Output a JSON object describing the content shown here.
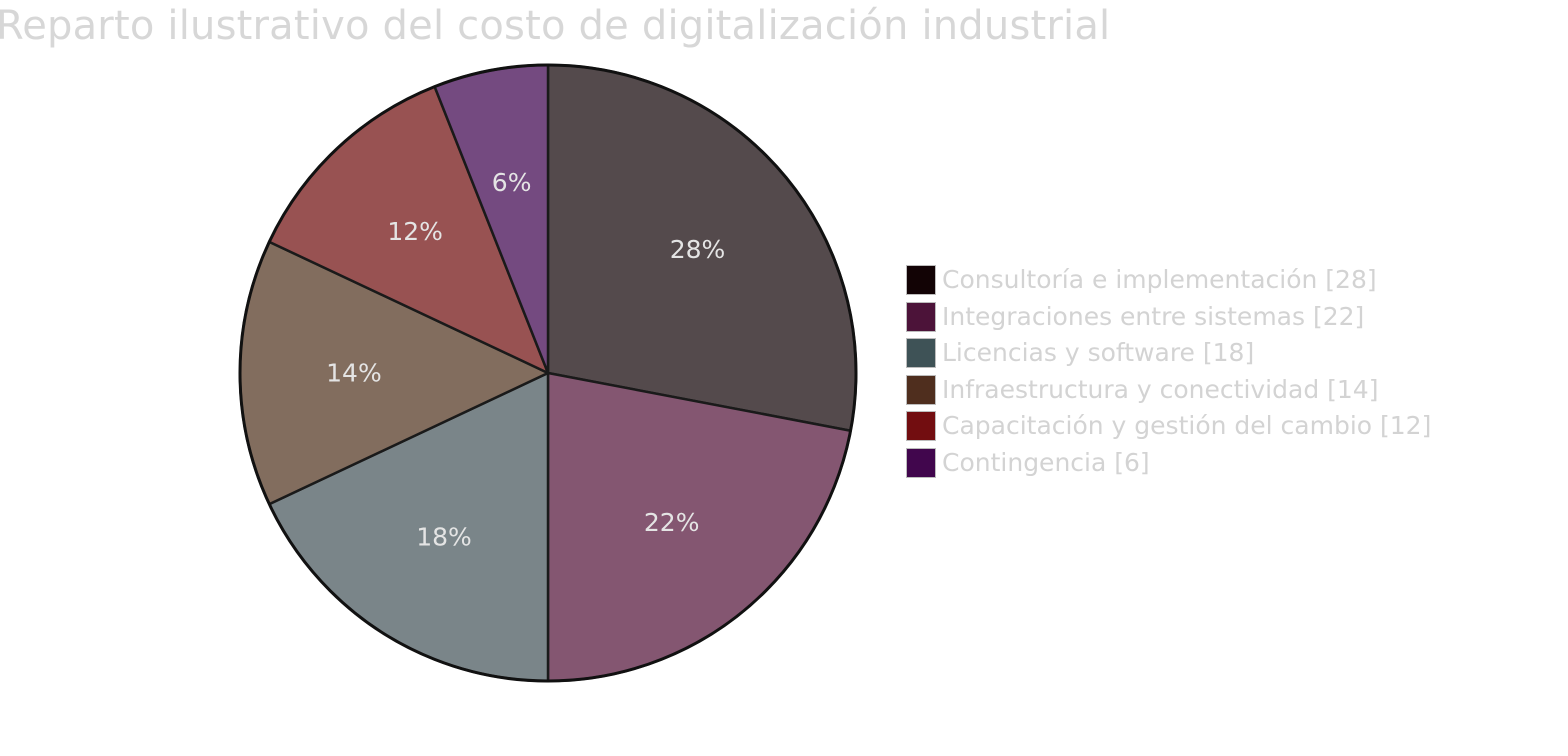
{
  "chart_data": {
    "type": "pie",
    "title": "Reparto ilustrativo del costo de digitalización industrial",
    "categories": [
      "Consultoría e implementación",
      "Integraciones entre sistemas",
      "Licencias y software",
      "Infraestructura y conectividad",
      "Capacitación y gestión del cambio",
      "Contingencia"
    ],
    "values": [
      28,
      22,
      18,
      14,
      12,
      6
    ],
    "slice_labels": [
      "28%",
      "22%",
      "18%",
      "14%",
      "12%",
      "6%"
    ],
    "legend_labels": [
      "Consultoría e implementación [28]",
      "Integraciones entre sistemas [22]",
      "Licencias y software [18]",
      "Infraestructura y conectividad [14]",
      "Capacitación y gestión del cambio [12]",
      "Contingencia [6]"
    ],
    "slice_colors": [
      "#544a4c",
      "#845671",
      "#7a8589",
      "#826d5e",
      "#985252",
      "#744a80"
    ],
    "legend_colors": [
      "#120305",
      "#4c1339",
      "#3e5256",
      "#4f2e1e",
      "#720d10",
      "#41064d"
    ],
    "legend_position": "right",
    "start_angle": "top",
    "direction": "clockwise"
  }
}
